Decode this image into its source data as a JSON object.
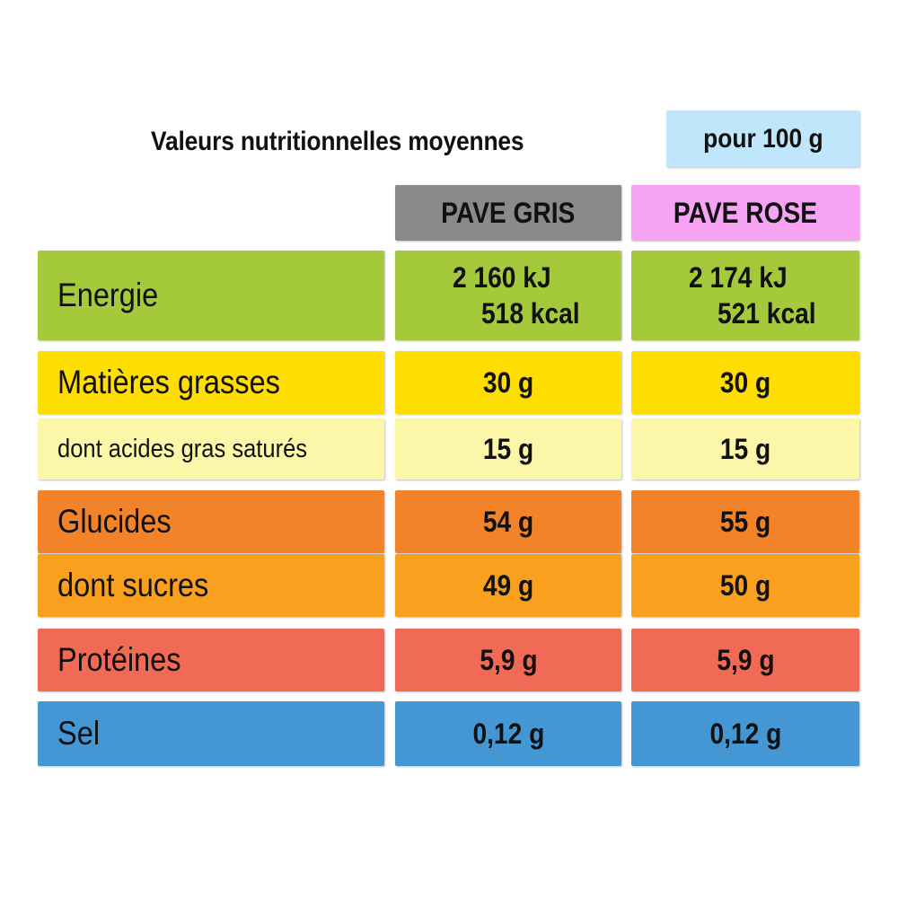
{
  "header": {
    "title": "Valeurs nutritionnelles moyennes",
    "per_label": "pour 100 g"
  },
  "columns": [
    {
      "label": "PAVE GRIS",
      "color": "#8a8a8a"
    },
    {
      "label": "PAVE ROSE",
      "color": "#f5a3f2"
    }
  ],
  "rows": {
    "energie": {
      "label": "Energie",
      "color": "#a4c93b",
      "gris_kj": "2 160 kJ",
      "gris_kcal": "518 kcal",
      "rose_kj": "2 174 kJ",
      "rose_kcal": "521 kcal"
    },
    "matieres_grasses": {
      "label": "Matières grasses",
      "color": "#fedd00",
      "gris": "30 g",
      "rose": "30 g"
    },
    "acides_gras_satures": {
      "label": "dont acides gras saturés",
      "color": "#fcf6a8",
      "gris": "15 g",
      "rose": "15 g"
    },
    "glucides": {
      "label": "Glucides",
      "color": "#f28328",
      "gris": "54 g",
      "rose": "55 g"
    },
    "sucres": {
      "label": "dont sucres",
      "color": "#f9a11f",
      "gris": "49 g",
      "rose": "50 g"
    },
    "proteines": {
      "label": "Protéines",
      "color": "#f06a55",
      "gris": "5,9 g",
      "rose": "5,9 g"
    },
    "sel": {
      "label": "Sel",
      "color": "#4497d3",
      "gris": "0,12 g",
      "rose": "0,12 g"
    }
  },
  "colors": {
    "per_box": "#bfe6fa"
  }
}
